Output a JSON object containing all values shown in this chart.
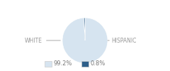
{
  "slices": [
    99.2,
    0.8
  ],
  "colors": [
    "#d6e4f0",
    "#2e5f8a"
  ],
  "labels": [
    "WHITE",
    "HISPANIC"
  ],
  "legend_labels": [
    "99.2%",
    "0.8%"
  ],
  "label_fontsize": 5.5,
  "legend_fontsize": 6.0,
  "background_color": "#ffffff",
  "startangle": 90,
  "text_color": "#999999",
  "line_color": "#aaaaaa"
}
